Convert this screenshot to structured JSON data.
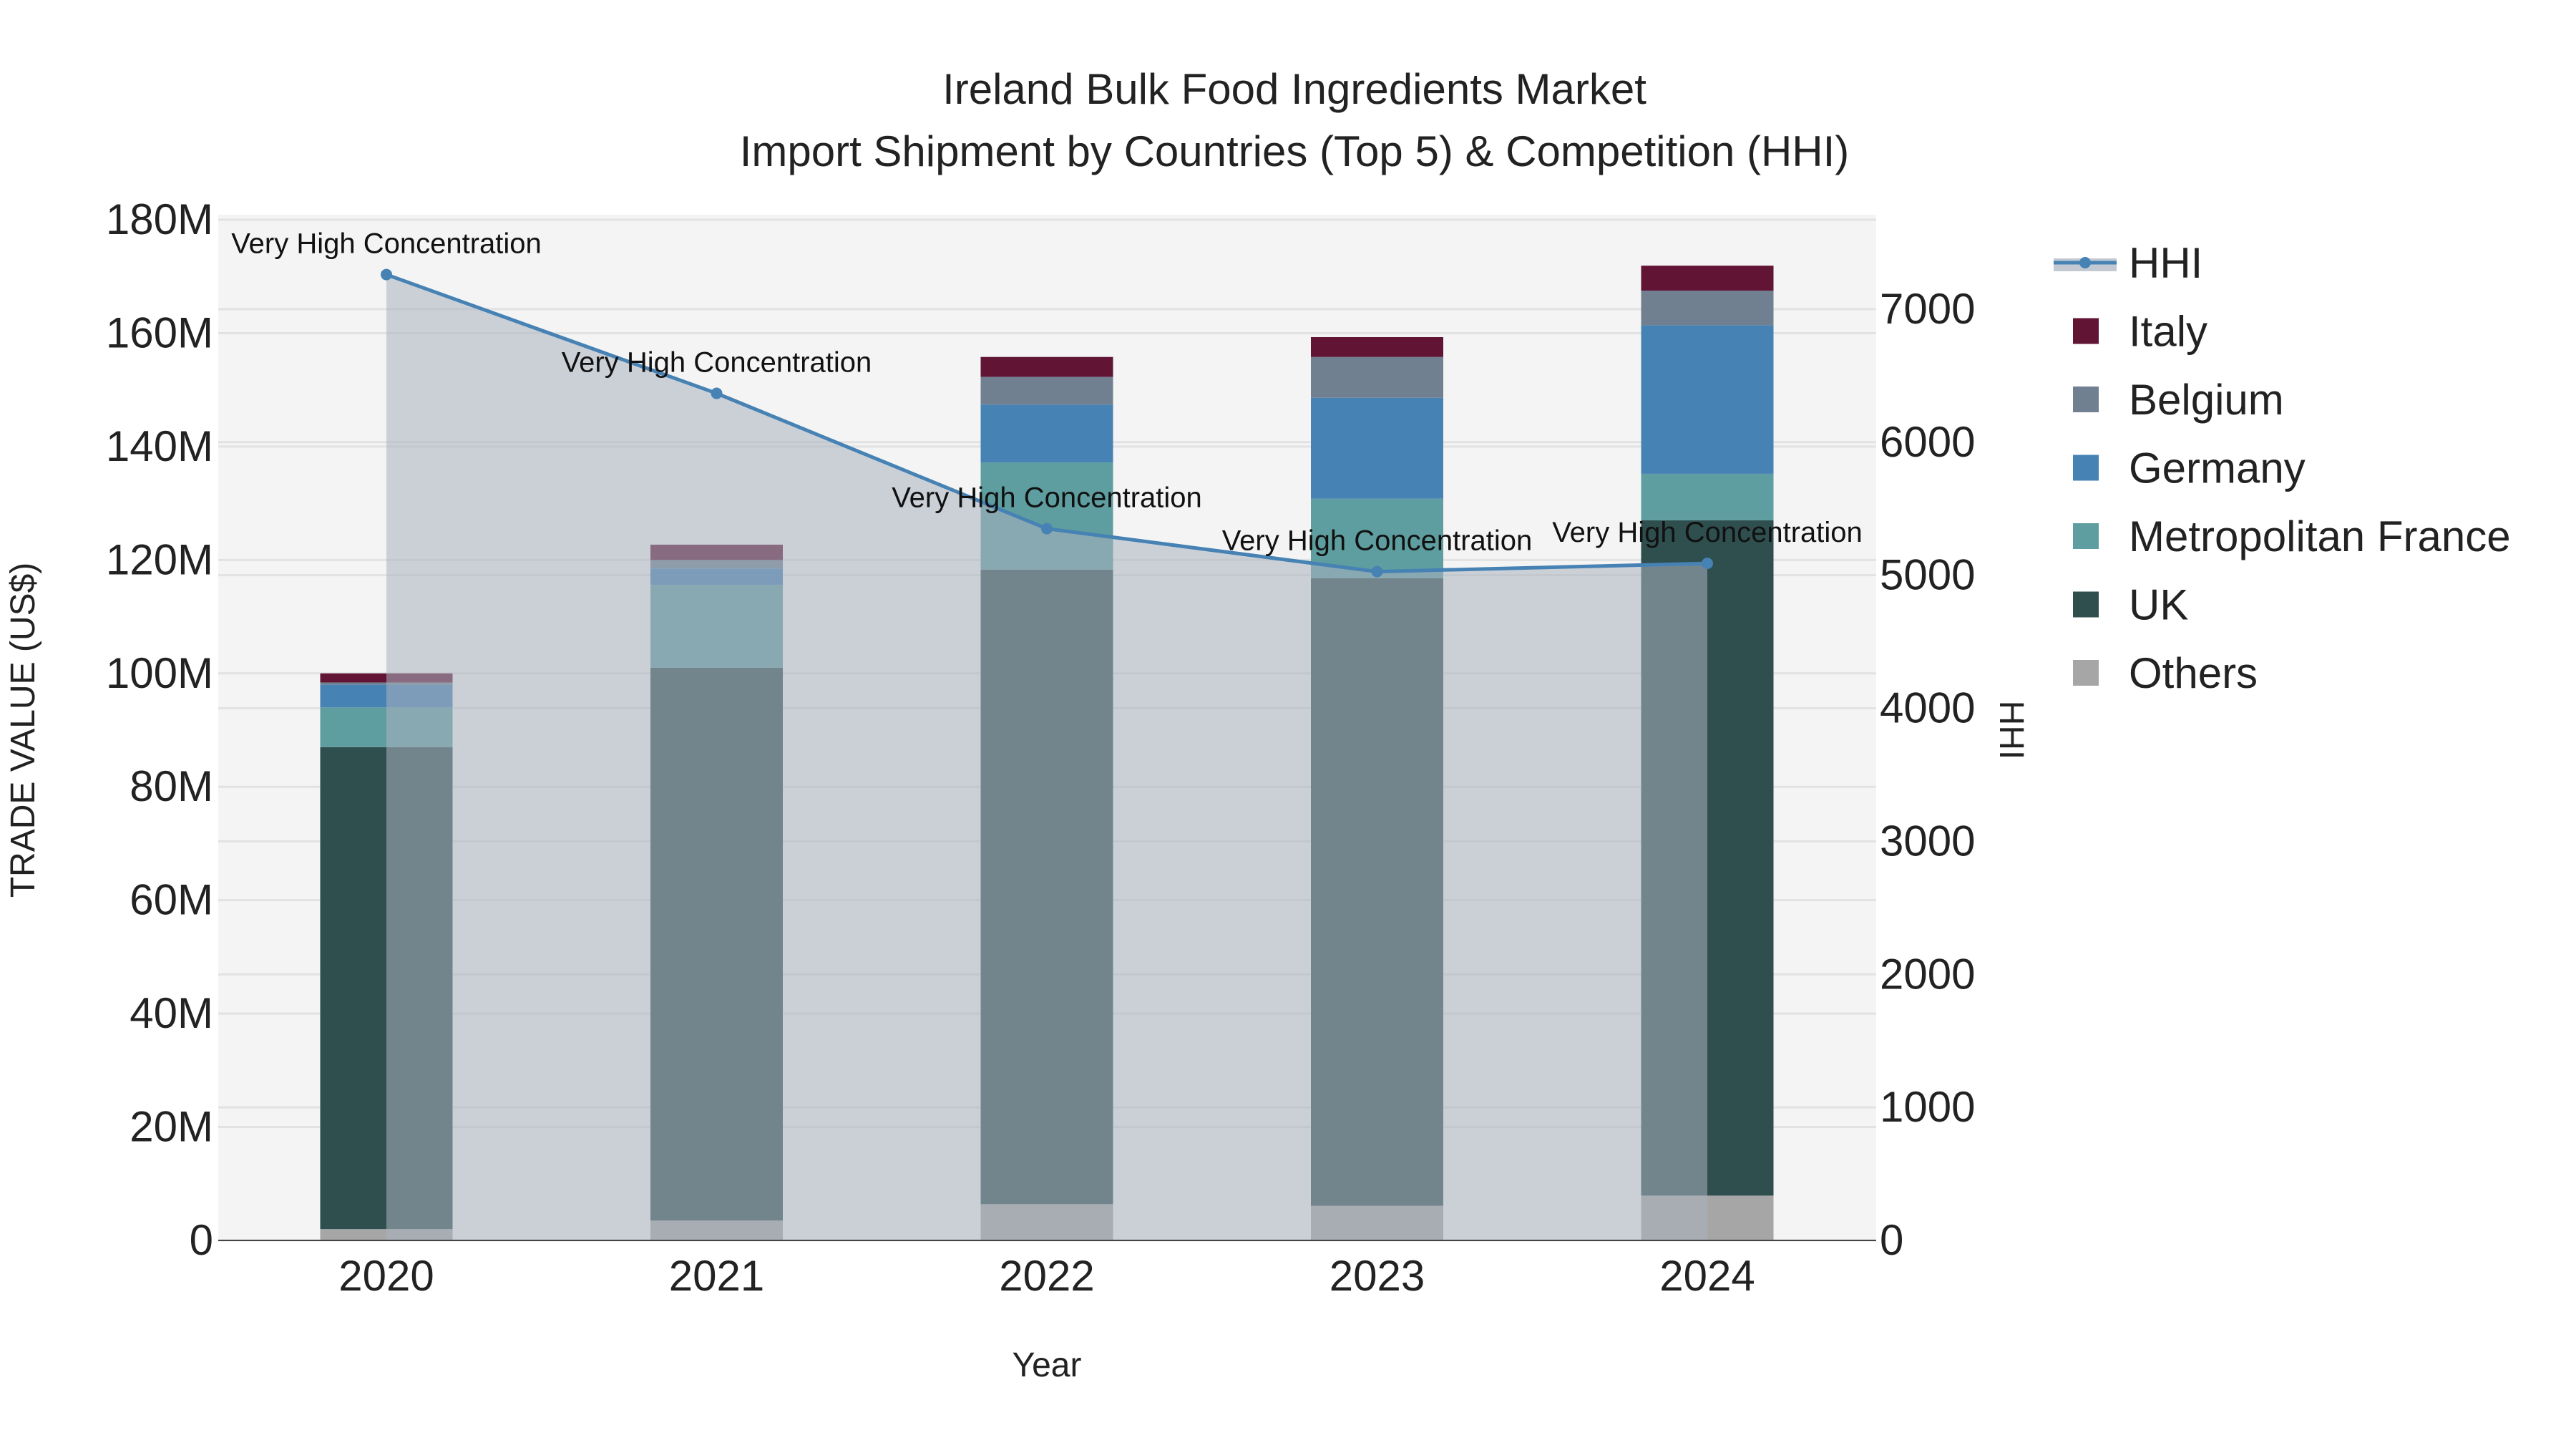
{
  "chart_data": {
    "type": "bar",
    "title": "Ireland Bulk Food Ingredients Market",
    "subtitle": "Import Shipment by Countries (Top 5) & Competition (HHI)",
    "xlabel": "Year",
    "ylabel": "TRADE VALUE (US$)",
    "y2label": "HHI",
    "categories": [
      "2020",
      "2021",
      "2022",
      "2023",
      "2024"
    ],
    "ylim": [
      0,
      180000000
    ],
    "yticks": [
      0,
      20000000,
      40000000,
      60000000,
      80000000,
      100000000,
      120000000,
      140000000,
      160000000,
      180000000
    ],
    "ytick_labels": [
      "0",
      "20M",
      "40M",
      "60M",
      "80M",
      "100M",
      "120M",
      "140M",
      "160M",
      "180M"
    ],
    "y2lim": [
      0,
      7672
    ],
    "y2ticks": [
      0,
      1000,
      2000,
      3000,
      4000,
      5000,
      6000,
      7000
    ],
    "y2tick_labels": [
      "0",
      "1000",
      "2000",
      "3000",
      "4000",
      "5000",
      "6000",
      "7000"
    ],
    "grid": true,
    "legend_position": "right",
    "series": [
      {
        "name": "Others",
        "color": "#a6a6a6",
        "values": [
          2000000,
          3500000,
          6400000,
          6100000,
          7900000
        ]
      },
      {
        "name": "UK",
        "color": "#2f4f4f",
        "values": [
          85000000,
          97500000,
          111900000,
          110700000,
          119100000
        ]
      },
      {
        "name": "Metropolitan France",
        "color": "#5f9ea0",
        "values": [
          7000000,
          14600000,
          18900000,
          14000000,
          8200000
        ]
      },
      {
        "name": "Germany",
        "color": "#4682b4",
        "values": [
          4000000,
          2900000,
          10200000,
          17800000,
          26200000
        ]
      },
      {
        "name": "Belgium",
        "color": "#708090",
        "values": [
          400000,
          1500000,
          4900000,
          7200000,
          6100000
        ]
      },
      {
        "name": "Italy",
        "color": "#611434",
        "values": [
          1600000,
          2700000,
          3500000,
          3500000,
          4400000
        ]
      }
    ],
    "hhi": {
      "name": "HHI",
      "color": "#4682b4",
      "values": [
        7260,
        6367,
        5350,
        5027,
        5089
      ],
      "annotations": [
        "Very High Concentration",
        "Very High Concentration",
        "Very High Concentration",
        "Very High Concentration",
        "Very High Concentration"
      ]
    },
    "legend": [
      "HHI",
      "Italy",
      "Belgium",
      "Germany",
      "Metropolitan France",
      "UK",
      "Others"
    ]
  }
}
